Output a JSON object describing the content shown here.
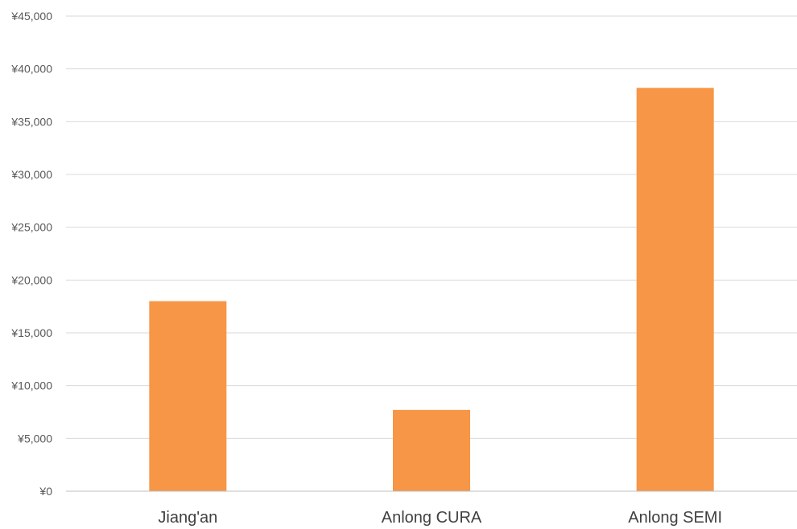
{
  "chart_data": {
    "type": "bar",
    "categories": [
      "Jiang'an",
      "Anlong CURA",
      "Anlong SEMI"
    ],
    "values": [
      18000,
      7700,
      38200
    ],
    "ylim": [
      0,
      45000
    ],
    "yticks": [
      "¥0",
      "¥5,000",
      "¥10,000",
      "¥15,000",
      "¥20,000",
      "¥25,000",
      "¥30,000",
      "¥35,000",
      "¥40,000",
      "¥45,000"
    ],
    "grid": true,
    "colors": {
      "bar": "#F79646",
      "grid": "#D9D9D9",
      "axis": "#BFBFBF"
    }
  }
}
